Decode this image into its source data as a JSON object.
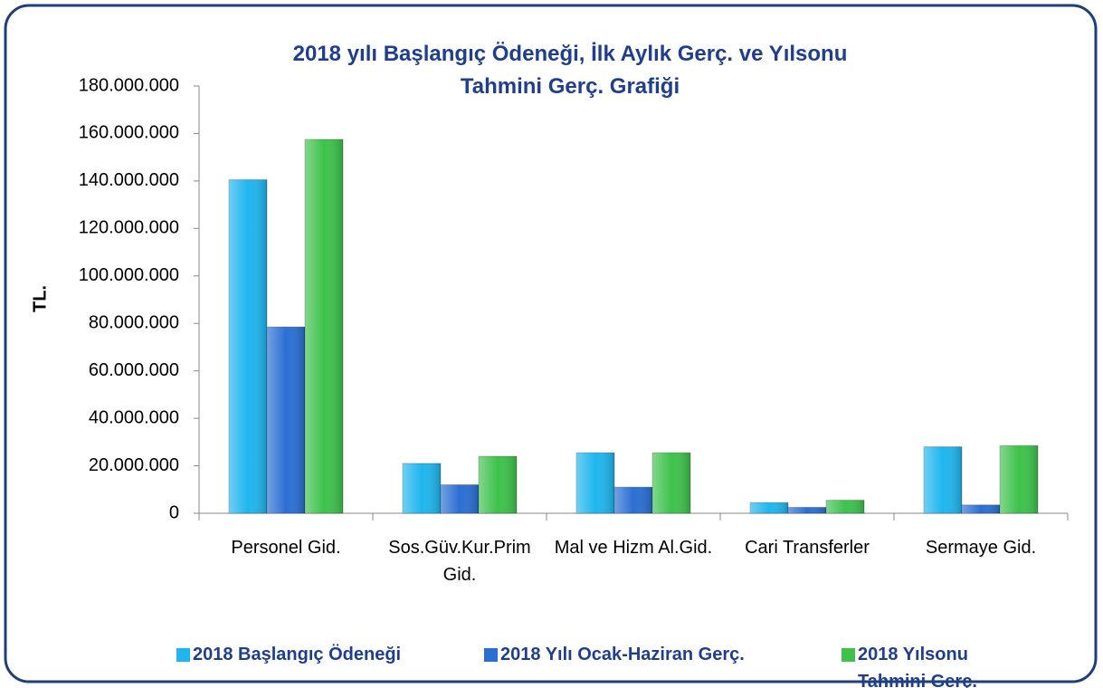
{
  "chart_data": {
    "type": "bar",
    "title": "2018 yılı Başlangıç Ödeneği, İlk Aylık Gerç. ve Yılsonu Tahmini Gerç. Grafiği",
    "y_label": "TL.",
    "categories": [
      "Personel Gid.",
      "Sos.Güv.Kur.Prim Gid.",
      "Mal ve Hizm Al.Gid.",
      "Cari Transferler",
      "Sermaye Gid."
    ],
    "series": [
      {
        "name": "2018 Başlangıç Ödeneği",
        "color": "#1fb6ef",
        "values": [
          140500000,
          21000000,
          25500000,
          4500000,
          28000000
        ]
      },
      {
        "name": "2018 Yılı Ocak-Haziran Gerç.",
        "color": "#2b6fd3",
        "values": [
          78500000,
          12000000,
          11000000,
          2500000,
          3500000
        ]
      },
      {
        "name": "2018 Yılsonu Tahmini Gerç.",
        "color": "#3ec24c",
        "values": [
          157500000,
          24000000,
          25500000,
          5500000,
          28500000
        ]
      }
    ],
    "ylim": [
      0,
      180000000
    ],
    "yticks": [
      0,
      {
        "value": 20000000,
        "label": "20.000.000"
      },
      {
        "value": 40000000,
        "label": "40.000.000"
      },
      {
        "value": 60000000,
        "label": "60.000.000"
      },
      {
        "value": 80000000,
        "label": "80.000.000"
      },
      {
        "value": 100000000,
        "label": "100.000.000"
      },
      {
        "value": 120000000,
        "label": "120.000.000"
      },
      {
        "value": 140000000,
        "label": "140.000.000"
      },
      {
        "value": 160000000,
        "label": "160.000.000"
      },
      {
        "value": 180000000,
        "label": "180.000.000"
      }
    ],
    "grid": false,
    "legend": "bottom"
  }
}
